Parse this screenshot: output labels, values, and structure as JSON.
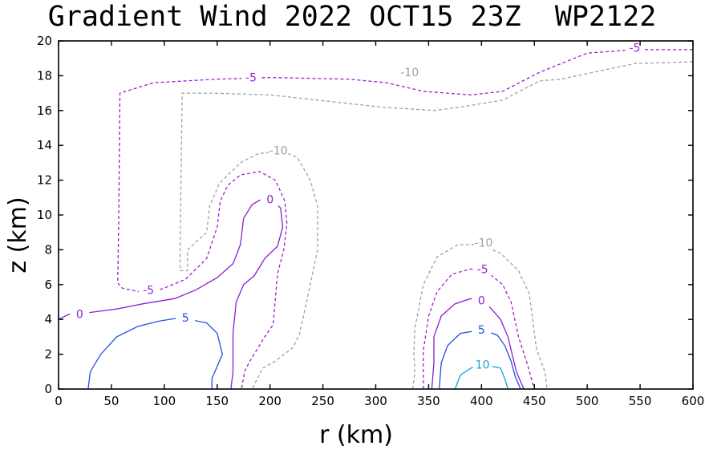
{
  "chart_data": {
    "type": "contour",
    "title": "Gradient Wind 2022 OCT15 23Z  WP2122",
    "xlabel": "r (km)",
    "ylabel": "z (km)",
    "xlim": [
      0,
      600
    ],
    "ylim": [
      0,
      20
    ],
    "xticks": [
      0,
      50,
      100,
      150,
      200,
      250,
      300,
      350,
      400,
      450,
      500,
      550,
      600
    ],
    "yticks": [
      0,
      2,
      4,
      6,
      8,
      10,
      12,
      14,
      16,
      18,
      20
    ],
    "colors": {
      "neg10": "#a0a0a0",
      "neg5": "#9a1fd6",
      "zero": "#8a1fd0",
      "pos5": "#2550e0",
      "pos10": "#1aa0e0"
    },
    "contours": [
      {
        "level": "-10",
        "style": "dashed",
        "color": "neg10",
        "label": "-10",
        "label_at": [
          332,
          18.2
        ],
        "points": [
          [
            600,
            18.8
          ],
          [
            545,
            18.7
          ],
          [
            475,
            17.8
          ],
          [
            455,
            17.7
          ],
          [
            420,
            16.6
          ],
          [
            380,
            16.2
          ],
          [
            355,
            16.0
          ],
          [
            305,
            16.2
          ],
          [
            200,
            16.9
          ],
          [
            145,
            17.0
          ],
          [
            117,
            17.0
          ],
          [
            115,
            8.5
          ],
          [
            115,
            6.8
          ],
          [
            122,
            6.8
          ],
          [
            122,
            8.0
          ],
          [
            140,
            9.0
          ],
          [
            143,
            10.5
          ],
          [
            152,
            11.8
          ],
          [
            172,
            13.0
          ],
          [
            188,
            13.5
          ],
          [
            210,
            13.7
          ],
          [
            226,
            13.3
          ],
          [
            238,
            12.0
          ],
          [
            245,
            10.5
          ],
          [
            245,
            8.0
          ],
          [
            238,
            6.0
          ],
          [
            232,
            4.3
          ],
          [
            228,
            3.2
          ],
          [
            222,
            2.4
          ],
          [
            205,
            1.6
          ],
          [
            193,
            1.2
          ],
          [
            183,
            0.0
          ]
        ]
      },
      {
        "level": "-10",
        "style": "dashed",
        "color": "neg10",
        "label": "-10",
        "label_at": [
          208,
          13.7
        ],
        "points": [
          [
            335,
            0
          ],
          [
            337,
            1.0
          ],
          [
            336,
            2.0
          ],
          [
            337,
            3.5
          ],
          [
            345,
            6.0
          ],
          [
            358,
            7.6
          ],
          [
            378,
            8.3
          ],
          [
            398,
            8.3
          ],
          [
            418,
            7.8
          ],
          [
            435,
            6.8
          ],
          [
            445,
            5.5
          ],
          [
            448,
            4.2
          ],
          [
            452,
            2.3
          ],
          [
            460,
            1.0
          ],
          [
            462,
            0
          ]
        ]
      },
      {
        "level": "-10",
        "style": "dashed",
        "color": "neg10",
        "label": "-10",
        "label_at": [
          402,
          8.4
        ],
        "points": []
      },
      {
        "level": "-5",
        "style": "dashed",
        "color": "neg5",
        "label": "-5",
        "label_at": [
          545,
          19.6
        ],
        "points": [
          [
            600,
            19.5
          ],
          [
            545,
            19.5
          ],
          [
            500,
            19.3
          ],
          [
            455,
            18.2
          ],
          [
            420,
            17.1
          ],
          [
            390,
            16.9
          ],
          [
            345,
            17.1
          ],
          [
            310,
            17.6
          ],
          [
            275,
            17.8
          ],
          [
            200,
            17.9
          ],
          [
            150,
            17.8
          ],
          [
            90,
            17.6
          ],
          [
            58,
            17.0
          ],
          [
            57,
            10.0
          ],
          [
            56,
            6.1
          ],
          [
            60,
            5.8
          ],
          [
            75,
            5.6
          ],
          [
            90,
            5.6
          ],
          [
            100,
            5.8
          ],
          [
            120,
            6.3
          ],
          [
            140,
            7.5
          ],
          [
            150,
            9.3
          ],
          [
            153,
            10.8
          ],
          [
            160,
            11.7
          ],
          [
            172,
            12.3
          ],
          [
            190,
            12.5
          ],
          [
            205,
            12.0
          ],
          [
            214,
            10.8
          ],
          [
            216,
            9.5
          ],
          [
            213,
            8.0
          ],
          [
            207,
            6.6
          ],
          [
            205,
            5.2
          ],
          [
            203,
            3.7
          ],
          [
            195,
            3.0
          ],
          [
            187,
            2.2
          ],
          [
            180,
            1.5
          ],
          [
            176,
            1.0
          ],
          [
            173,
            0.0
          ]
        ]
      },
      {
        "level": "-5",
        "style": "dashed",
        "color": "neg5",
        "label": "-5",
        "label_at": [
          182,
          17.9
        ],
        "points": [
          [
            345,
            0
          ],
          [
            345,
            1.0
          ],
          [
            345,
            2.2
          ],
          [
            350,
            4.2
          ],
          [
            358,
            5.6
          ],
          [
            372,
            6.6
          ],
          [
            390,
            6.9
          ],
          [
            408,
            6.6
          ],
          [
            420,
            6.0
          ],
          [
            428,
            5.0
          ],
          [
            435,
            3.0
          ],
          [
            443,
            1.5
          ],
          [
            450,
            0
          ]
        ]
      },
      {
        "level": "-5",
        "style": "dashed",
        "color": "neg5",
        "label": "-5",
        "label_at": [
          85,
          5.7
        ],
        "points": []
      },
      {
        "level": "-5",
        "style": "dashed",
        "color": "neg5",
        "label": "-5",
        "label_at": [
          401,
          6.9
        ],
        "points": []
      },
      {
        "level": "0",
        "style": "solid",
        "color": "zero",
        "label": "0",
        "label_at": [
          200,
          10.9
        ],
        "points": [
          [
            0,
            4.0
          ],
          [
            10,
            4.3
          ],
          [
            30,
            4.4
          ],
          [
            55,
            4.6
          ],
          [
            80,
            4.9
          ],
          [
            110,
            5.2
          ],
          [
            130,
            5.7
          ],
          [
            150,
            6.4
          ],
          [
            165,
            7.2
          ],
          [
            172,
            8.3
          ],
          [
            175,
            9.8
          ],
          [
            183,
            10.6
          ],
          [
            198,
            11.1
          ],
          [
            210,
            10.4
          ],
          [
            212,
            9.3
          ],
          [
            207,
            8.2
          ],
          [
            195,
            7.5
          ],
          [
            185,
            6.5
          ],
          [
            175,
            6.0
          ],
          [
            168,
            5.0
          ],
          [
            165,
            3.2
          ],
          [
            165,
            1.8
          ],
          [
            165,
            1.0
          ],
          [
            163,
            0.0
          ]
        ]
      },
      {
        "level": "0",
        "style": "solid",
        "color": "zero",
        "label": "0",
        "label_at": [
          20,
          4.3
        ],
        "points": [
          [
            353,
            0
          ],
          [
            355,
            1.5
          ],
          [
            355,
            3.0
          ],
          [
            362,
            4.2
          ],
          [
            375,
            4.9
          ],
          [
            390,
            5.2
          ],
          [
            405,
            4.9
          ],
          [
            418,
            4.0
          ],
          [
            425,
            3.0
          ],
          [
            433,
            1.0
          ],
          [
            440,
            0
          ]
        ]
      },
      {
        "level": "0",
        "style": "solid",
        "color": "zero",
        "label": "0",
        "label_at": [
          400,
          5.1
        ],
        "points": []
      },
      {
        "level": "5",
        "style": "solid",
        "color": "pos5",
        "label": "5",
        "label_at": [
          120,
          4.1
        ],
        "points": [
          [
            28,
            0.0
          ],
          [
            30,
            1.0
          ],
          [
            40,
            2.0
          ],
          [
            55,
            3.0
          ],
          [
            75,
            3.6
          ],
          [
            95,
            3.9
          ],
          [
            115,
            4.1
          ],
          [
            140,
            3.8
          ],
          [
            150,
            3.2
          ],
          [
            155,
            2.0
          ],
          [
            150,
            1.3
          ],
          [
            145,
            0.6
          ],
          [
            145,
            0.0
          ]
        ]
      },
      {
        "level": "5",
        "style": "solid",
        "color": "pos5",
        "label": "5",
        "label_at": [
          400,
          3.4
        ],
        "points": [
          [
            360,
            0
          ],
          [
            362,
            1.5
          ],
          [
            368,
            2.5
          ],
          [
            380,
            3.2
          ],
          [
            400,
            3.4
          ],
          [
            415,
            3.1
          ],
          [
            422,
            2.5
          ],
          [
            428,
            1.6
          ],
          [
            432,
            0.7
          ],
          [
            437,
            0
          ]
        ]
      },
      {
        "level": "10",
        "style": "solid",
        "color": "pos10",
        "label": "10",
        "label_at": [
          401,
          1.4
        ],
        "points": [
          [
            375,
            0
          ],
          [
            380,
            0.8
          ],
          [
            390,
            1.2
          ],
          [
            401,
            1.5
          ],
          [
            410,
            1.3
          ],
          [
            418,
            1.2
          ],
          [
            422,
            0.6
          ],
          [
            425,
            0
          ]
        ]
      }
    ]
  }
}
